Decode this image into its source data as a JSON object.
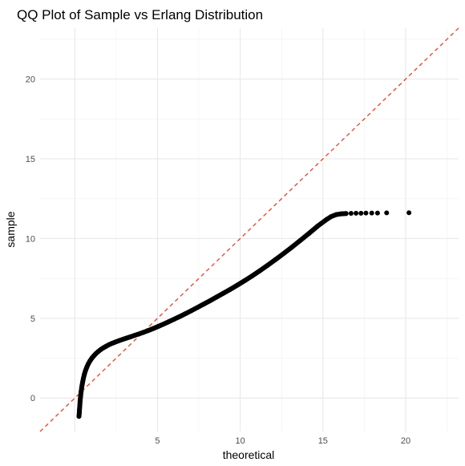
{
  "chart_data": {
    "type": "scatter",
    "title": "QQ Plot of Sample vs Erlang Distribution",
    "xlabel": "theoretical",
    "ylabel": "sample",
    "xlim": [
      -2.1,
      23.2
    ],
    "ylim": [
      -2.1,
      23.2
    ],
    "x_ticks": [
      5,
      10,
      15,
      20
    ],
    "y_ticks": [
      0,
      5,
      10,
      15,
      20
    ],
    "grid": true,
    "legend": "none",
    "reference_line": {
      "slope": 1,
      "intercept": 0,
      "style": "dashed",
      "color": "#e8412c"
    },
    "point_color": "#000000",
    "series": [
      {
        "x": [
          0.25,
          0.27,
          0.28,
          0.3,
          0.32,
          0.35,
          0.38,
          0.42,
          0.47,
          0.52,
          0.58,
          0.65,
          0.73,
          0.82,
          0.92,
          1.03,
          1.15,
          1.28,
          1.42,
          1.57,
          1.73,
          1.9,
          2.08,
          2.27,
          2.47,
          2.68,
          2.9,
          3.13,
          3.37,
          3.62,
          3.88,
          4.15,
          4.43,
          4.72,
          5.02,
          5.33,
          5.65,
          5.98,
          6.32,
          6.67,
          7.03,
          7.4,
          7.78,
          8.17,
          8.57,
          8.98,
          9.4,
          9.83,
          10.27,
          10.72,
          11.18,
          11.65,
          12.13,
          12.62,
          13.12,
          13.63,
          14.15,
          14.68,
          15.22,
          15.5,
          15.8,
          16.1,
          16.4,
          16.7,
          17.0,
          17.3,
          17.6,
          17.95,
          18.3,
          18.85,
          20.2
        ],
        "y": [
          -1.15,
          -0.95,
          -0.75,
          -0.5,
          -0.2,
          0.1,
          0.4,
          0.7,
          0.98,
          1.25,
          1.5,
          1.73,
          1.95,
          2.15,
          2.33,
          2.5,
          2.65,
          2.79,
          2.92,
          3.04,
          3.15,
          3.25,
          3.35,
          3.44,
          3.52,
          3.6,
          3.68,
          3.76,
          3.84,
          3.93,
          4.02,
          4.12,
          4.23,
          4.35,
          4.48,
          4.62,
          4.77,
          4.93,
          5.1,
          5.28,
          5.47,
          5.67,
          5.88,
          6.1,
          6.33,
          6.57,
          6.82,
          7.08,
          7.36,
          7.66,
          7.98,
          8.32,
          8.68,
          9.06,
          9.46,
          9.88,
          10.32,
          10.78,
          11.2,
          11.38,
          11.5,
          11.55,
          11.57,
          11.58,
          11.59,
          11.59,
          11.6,
          11.6,
          11.6,
          11.61,
          11.62
        ]
      }
    ]
  }
}
